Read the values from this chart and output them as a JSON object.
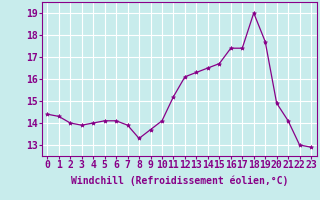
{
  "x": [
    0,
    1,
    2,
    3,
    4,
    5,
    6,
    7,
    8,
    9,
    10,
    11,
    12,
    13,
    14,
    15,
    16,
    17,
    18,
    19,
    20,
    21,
    22,
    23
  ],
  "y": [
    14.4,
    14.3,
    14.0,
    13.9,
    14.0,
    14.1,
    14.1,
    13.9,
    13.3,
    13.7,
    14.1,
    15.2,
    16.1,
    16.3,
    16.5,
    16.7,
    17.4,
    17.4,
    19.0,
    17.7,
    14.9,
    14.1,
    13.0,
    12.9
  ],
  "line_color": "#880088",
  "marker": "*",
  "marker_size": 3,
  "bg_color": "#c8ecec",
  "grid_color": "#ffffff",
  "xlabel": "Windchill (Refroidissement éolien,°C)",
  "ylim": [
    12.5,
    19.5
  ],
  "xlim": [
    -0.5,
    23.5
  ],
  "yticks": [
    13,
    14,
    15,
    16,
    17,
    18,
    19
  ],
  "xticks": [
    0,
    1,
    2,
    3,
    4,
    5,
    6,
    7,
    8,
    9,
    10,
    11,
    12,
    13,
    14,
    15,
    16,
    17,
    18,
    19,
    20,
    21,
    22,
    23
  ],
  "xtick_labels": [
    "0",
    "1",
    "2",
    "3",
    "4",
    "5",
    "6",
    "7",
    "8",
    "9",
    "10",
    "11",
    "12",
    "13",
    "14",
    "15",
    "16",
    "17",
    "18",
    "19",
    "20",
    "21",
    "22",
    "23"
  ],
  "label_fontsize": 7,
  "tick_fontsize": 7
}
